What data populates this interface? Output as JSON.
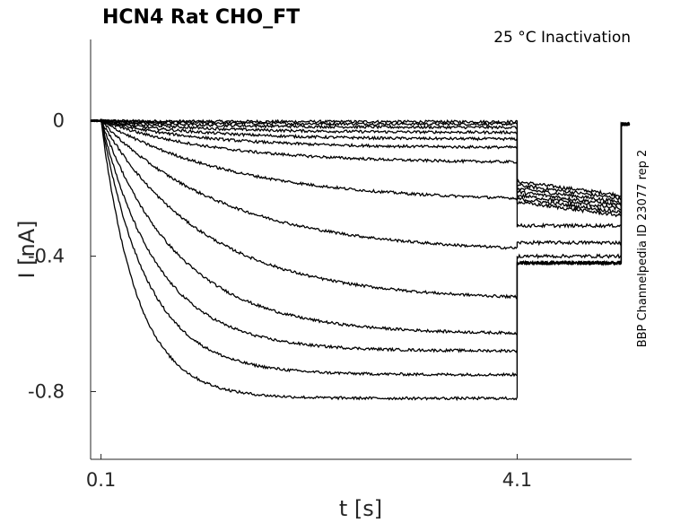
{
  "chart_data": {
    "type": "line",
    "title": "HCN4  Rat  CHO_FT",
    "subtitle": "25 °C  Inactivation",
    "side_note": "BBP Channelpedia ID 23077 rep 2",
    "xlabel": "t [s]",
    "ylabel": "I [nA]",
    "x_ticks": [
      0.1,
      4.1
    ],
    "x_tick_labels": [
      "0.1",
      "4.1"
    ],
    "y_ticks": [
      0,
      -0.4,
      -0.8
    ],
    "y_tick_labels": [
      "0",
      "-0.4",
      "-0.8"
    ],
    "xlim": [
      0.0,
      5.2
    ],
    "ylim": [
      -1.0,
      0.24
    ],
    "grid": false,
    "legend": "none",
    "protocol": {
      "step_start_s": 0.1,
      "step_end_s": 4.1,
      "tail_end_s": 5.1
    },
    "series": [
      {
        "steady_nA": -0.003,
        "tail_nA": -0.18,
        "tau_s": 1.0
      },
      {
        "steady_nA": -0.01,
        "tail_nA": -0.19,
        "tau_s": 1.0
      },
      {
        "steady_nA": -0.02,
        "tail_nA": -0.2,
        "tau_s": 1.0
      },
      {
        "steady_nA": -0.035,
        "tail_nA": -0.21,
        "tau_s": 1.0
      },
      {
        "steady_nA": -0.055,
        "tail_nA": -0.22,
        "tau_s": 1.0
      },
      {
        "steady_nA": -0.08,
        "tail_nA": -0.23,
        "tau_s": 1.0
      },
      {
        "steady_nA": -0.125,
        "tail_nA": -0.24,
        "tau_s": 1.1
      },
      {
        "steady_nA": -0.24,
        "tail_nA": -0.31,
        "tau_s": 1.3
      },
      {
        "steady_nA": -0.39,
        "tail_nA": -0.36,
        "tau_s": 1.2
      },
      {
        "steady_nA": -0.53,
        "tail_nA": -0.4,
        "tau_s": 1.0
      },
      {
        "steady_nA": -0.63,
        "tail_nA": -0.42,
        "tau_s": 0.75
      },
      {
        "steady_nA": -0.68,
        "tail_nA": -0.42,
        "tau_s": 0.55
      },
      {
        "steady_nA": -0.75,
        "tail_nA": -0.42,
        "tau_s": 0.45
      },
      {
        "steady_nA": -0.82,
        "tail_nA": -0.42,
        "tau_s": 0.35
      }
    ]
  }
}
